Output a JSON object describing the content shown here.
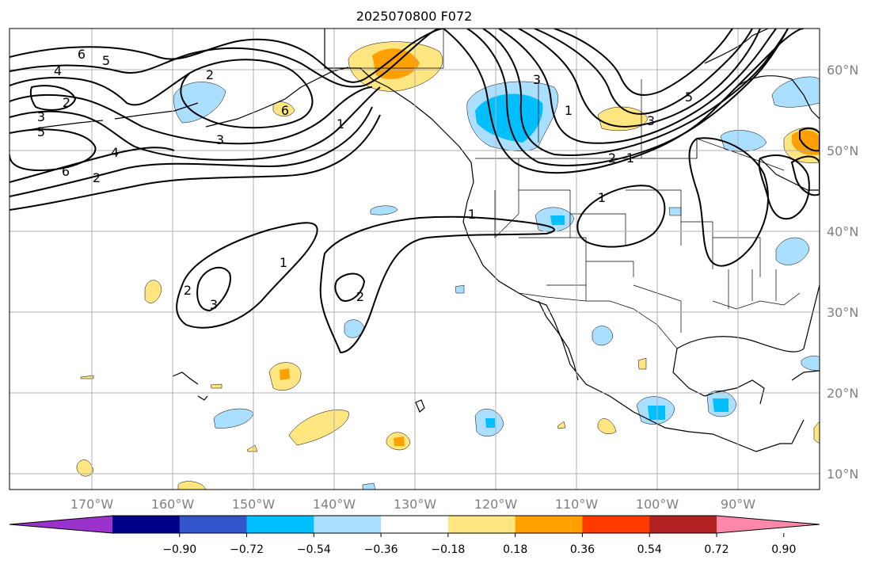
{
  "title": "2025070800 F072",
  "lon_labels": [
    "170°W",
    "160°W",
    "150°W",
    "140°W",
    "130°W",
    "120°W",
    "110°W",
    "100°W",
    "90°W"
  ],
  "lat_labels": [
    "60°N",
    "50°N",
    "40°N",
    "30°N",
    "20°N",
    "10°N"
  ],
  "colorbar": {
    "ticks": [
      "−0.90",
      "−0.72",
      "−0.54",
      "−0.36",
      "−0.18",
      "0.18",
      "0.36",
      "0.54",
      "0.72",
      "0.90"
    ],
    "colors": [
      "#9933cc",
      "#000088",
      "#3355cc",
      "#00bfff",
      "#aadfff",
      "#ffffff",
      "#ffe680",
      "#ffa000",
      "#ff3a00",
      "#b22222",
      "#ff88aa"
    ]
  },
  "contour_labels": [
    "6",
    "5",
    "4",
    "3",
    "2",
    "5",
    "4",
    "6",
    "2",
    "2",
    "3",
    "1",
    "6",
    "3",
    "1",
    "3",
    "2",
    "6",
    "2",
    "1",
    "1",
    "1",
    "2",
    "3",
    "1",
    "2",
    "5"
  ],
  "map": {
    "land_fill": "none",
    "frame_color": "#000000",
    "grid_color": "#b0b0b0"
  }
}
